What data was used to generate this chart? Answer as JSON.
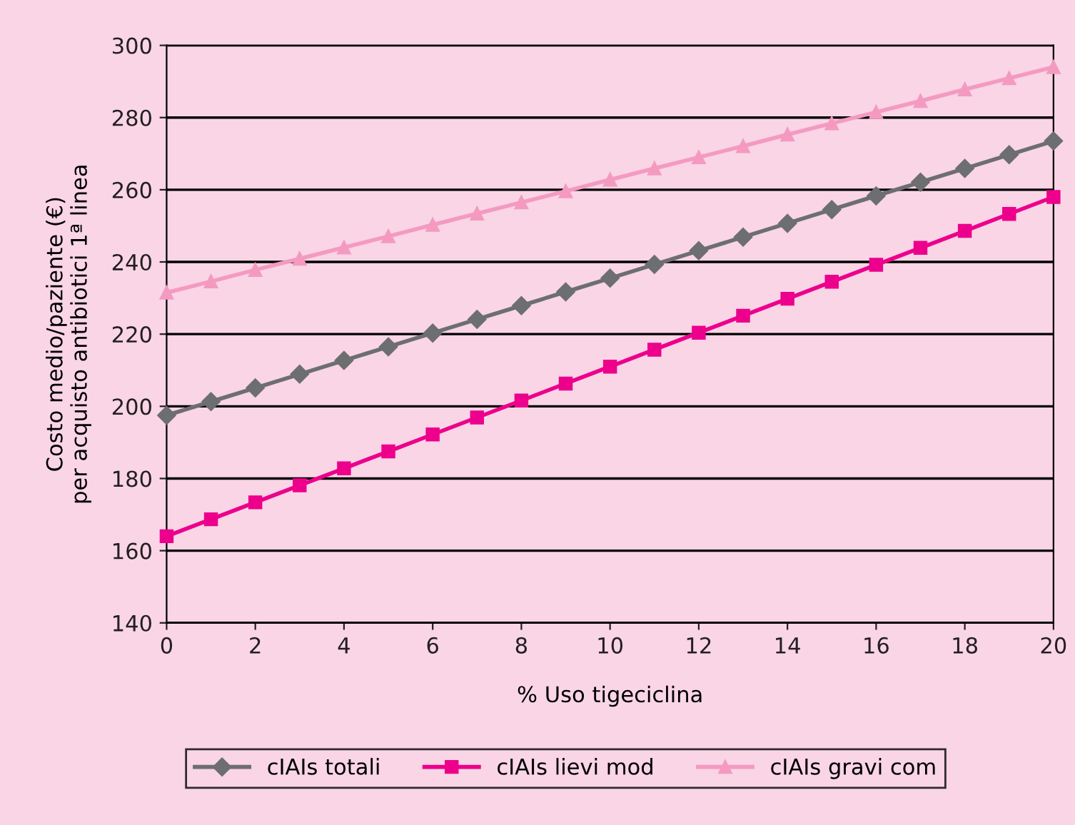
{
  "chart_data": {
    "type": "line",
    "xlabel": "% Uso tigeciclina",
    "ylabel": "Costo medio/paziente (€)\nper acquisto antibiotici 1ª linea",
    "x": [
      0,
      1,
      2,
      3,
      4,
      5,
      6,
      7,
      8,
      9,
      10,
      11,
      12,
      13,
      14,
      15,
      16,
      17,
      18,
      19,
      20
    ],
    "series": [
      {
        "name": "cIAIs totali",
        "color": "#6d6e70",
        "marker": "diamond",
        "values": [
          197.5,
          201.3,
          205.1,
          208.9,
          212.7,
          216.5,
          220.3,
          224.1,
          227.9,
          231.7,
          235.5,
          239.3,
          243.1,
          246.9,
          250.7,
          254.5,
          258.3,
          262.1,
          265.9,
          269.7,
          273.5
        ]
      },
      {
        "name": "cIAIs lievi mod",
        "color": "#ec008c",
        "marker": "square",
        "values": [
          164,
          168.7,
          173.4,
          178.1,
          182.8,
          187.5,
          192.2,
          196.9,
          201.6,
          206.3,
          211,
          215.7,
          220.4,
          225.1,
          229.8,
          234.5,
          239.2,
          243.9,
          248.6,
          253.3,
          258
        ]
      },
      {
        "name": "cIAIs gravi com",
        "color": "#f49ac1",
        "marker": "triangle",
        "values": [
          231.5,
          234.6,
          237.8,
          240.9,
          244,
          247.1,
          250.3,
          253.4,
          256.5,
          259.6,
          262.8,
          265.9,
          269,
          272.1,
          275.3,
          278.4,
          281.5,
          284.6,
          287.8,
          290.9,
          294
        ]
      }
    ],
    "xlim": [
      0,
      20
    ],
    "xticks": [
      0,
      2,
      4,
      6,
      8,
      10,
      12,
      14,
      16,
      18,
      20
    ],
    "ylim": [
      140,
      300
    ],
    "yticks": [
      140,
      160,
      180,
      200,
      220,
      240,
      260,
      280,
      300
    ],
    "grid": "y",
    "legend": "bottom",
    "line_style": "solid"
  }
}
